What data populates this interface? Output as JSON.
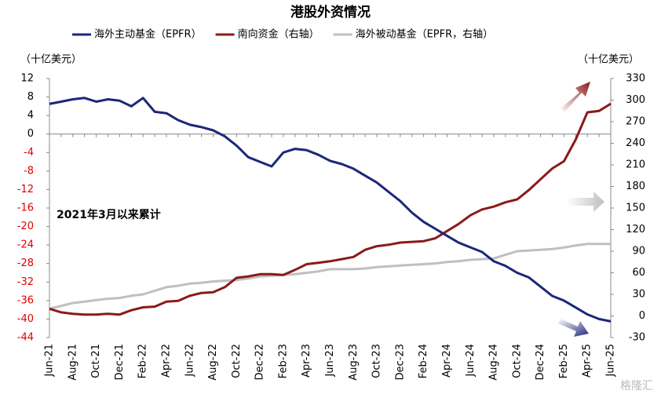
{
  "chart_data": {
    "type": "line",
    "title": "港股外资情况",
    "y_unit_label": "（十亿美元）",
    "y2_unit_label": "（十亿美元）",
    "annotation": "2021年3月以来累计",
    "watermark": "格隆汇",
    "categories": [
      "Jun-21",
      null,
      "Aug-21",
      null,
      "Oct-21",
      null,
      "Dec-21",
      null,
      "Feb-22",
      null,
      "Apr-22",
      null,
      "Jun-22",
      null,
      "Aug-22",
      null,
      "Oct-22",
      null,
      "Dec-22",
      null,
      "Feb-23",
      null,
      "Apr-23",
      null,
      "Jun-23",
      null,
      "Aug-23",
      null,
      "Oct-23",
      null,
      "Dec-23",
      null,
      "Feb-24",
      null,
      "Apr-24",
      null,
      "Jun-24",
      null,
      "Aug-24",
      null,
      "Oct-24",
      null,
      "Dec-24",
      null,
      "Feb-25",
      null,
      "Apr-25",
      null,
      "Jun-25"
    ],
    "ylim": [
      -44,
      12
    ],
    "yticks": [
      12,
      8,
      4,
      0,
      -4,
      -8,
      -12,
      -16,
      -20,
      -24,
      -28,
      -32,
      -36,
      -40,
      -44
    ],
    "y2lim": [
      -30,
      330
    ],
    "y2ticks": [
      330,
      300,
      270,
      240,
      210,
      180,
      150,
      120,
      90,
      60,
      30,
      0,
      -30
    ],
    "negative_tick_color": "#e00000",
    "legend": "top",
    "series": [
      {
        "name": "海外主动基金（EPFR）",
        "color": "#1c2779",
        "axis": "y",
        "values": [
          6.5,
          7,
          7.5,
          7.8,
          7,
          7.5,
          7.2,
          6,
          7.8,
          4.8,
          4.5,
          3,
          2,
          1.5,
          0.8,
          -0.5,
          -2.5,
          -5,
          -6,
          -7,
          -4,
          -3.2,
          -3.5,
          -4.5,
          -5.8,
          -6.5,
          -7.5,
          -9,
          -10.5,
          -12.5,
          -14.5,
          -17,
          -19,
          -20.5,
          -22,
          -23.5,
          -24.5,
          -25.5,
          -27.5,
          -28.5,
          -30,
          -31,
          -33,
          -35,
          -36,
          -37.5,
          -39,
          -40,
          -40.5
        ]
      },
      {
        "name": "南向资金（右轴）",
        "color": "#8b1a1a",
        "axis": "y2",
        "values": [
          10,
          5,
          3,
          2,
          2,
          3,
          2,
          8,
          12,
          13,
          20,
          21,
          28,
          32,
          33,
          40,
          53,
          55,
          58,
          58,
          57,
          64,
          72,
          74,
          76,
          79,
          82,
          92,
          97,
          99,
          102,
          103,
          104,
          108,
          118,
          128,
          140,
          148,
          152,
          158,
          162,
          175,
          190,
          205,
          215,
          245,
          283,
          285,
          295
        ]
      },
      {
        "name": "海外被动基金（EPFR，右轴）",
        "color": "#bfbfbf",
        "axis": "y2",
        "values": [
          10,
          14,
          18,
          20,
          22,
          24,
          25,
          28,
          30,
          35,
          40,
          42,
          45,
          46,
          48,
          49,
          50,
          52,
          55,
          56,
          57,
          58,
          60,
          62,
          65,
          65,
          65,
          66,
          68,
          69,
          70,
          71,
          72,
          73,
          75,
          76,
          78,
          79,
          80,
          85,
          90,
          91,
          92,
          93,
          95,
          98,
          100,
          100,
          100
        ]
      }
    ]
  }
}
